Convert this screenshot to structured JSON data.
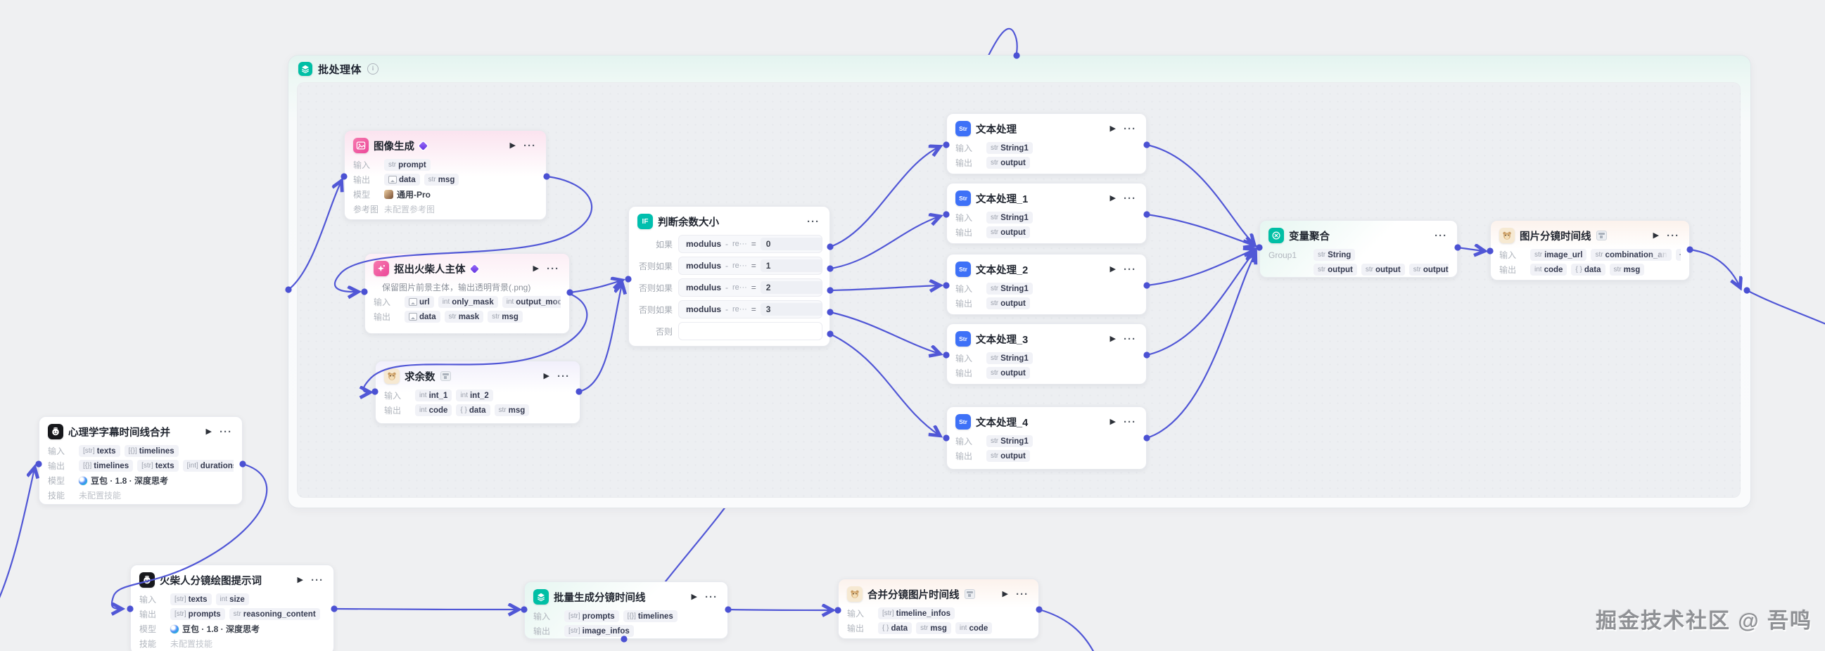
{
  "container": {
    "title": "批处理体"
  },
  "watermark": "掘金技术社区 @ 吾鸣",
  "nodes": [
    {
      "id": "imageGen",
      "title": "图像生成",
      "icon": "pic",
      "badge": "pro",
      "play": true,
      "menu": "···",
      "rows": [
        {
          "label": "输入",
          "type": "pills",
          "pills": [
            {
              "t": "str",
              "n": "prompt"
            }
          ]
        },
        {
          "label": "输出",
          "type": "pills",
          "pills": [
            {
              "t": "img",
              "n": "data"
            },
            {
              "t": "str",
              "n": "msg"
            }
          ]
        },
        {
          "label": "模型",
          "type": "model",
          "micon": "avatar",
          "text": "通用-Pro"
        },
        {
          "label": "参考图",
          "type": "muted",
          "text": "未配置参考图"
        }
      ]
    },
    {
      "id": "matting",
      "title": "抠出火柴人主体",
      "icon": "star",
      "badge": "pro",
      "play": true,
      "menu": "···",
      "rows": [
        {
          "type": "desc",
          "text": "保留图片前景主体，输出透明背景(.png)"
        },
        {
          "label": "输入",
          "type": "pills",
          "pills": [
            {
              "t": "img",
              "n": "url"
            },
            {
              "t": "int",
              "n": "only_mask"
            },
            {
              "t": "int",
              "n": "output_mode",
              "trunc": true
            }
          ],
          "more": "···"
        },
        {
          "label": "输出",
          "type": "pills",
          "pills": [
            {
              "t": "img",
              "n": "data"
            },
            {
              "t": "str",
              "n": "mask"
            },
            {
              "t": "str",
              "n": "msg"
            }
          ]
        }
      ]
    },
    {
      "id": "mod",
      "title": "求余数",
      "icon": "cat",
      "badge": "shop",
      "play": true,
      "menu": "···",
      "rows": [
        {
          "label": "输入",
          "type": "pills",
          "pills": [
            {
              "t": "int",
              "n": "int_1"
            },
            {
              "t": "int",
              "n": "int_2"
            }
          ]
        },
        {
          "label": "输出",
          "type": "pills",
          "pills": [
            {
              "t": "int",
              "n": "code"
            },
            {
              "t": "obj",
              "n": "data"
            },
            {
              "t": "str",
              "n": "msg"
            }
          ]
        }
      ]
    },
    {
      "id": "ifNode",
      "title": "判断余数大小",
      "icon": "if",
      "play": false,
      "menu": "···",
      "conds": [
        {
          "label": "如果",
          "field": "modulus",
          "op": "-",
          "cmp": "re···",
          "eq": "=",
          "value": "0"
        },
        {
          "label": "否则如果",
          "field": "modulus",
          "op": "-",
          "cmp": "re···",
          "eq": "=",
          "value": "1"
        },
        {
          "label": "否则如果",
          "field": "modulus",
          "op": "-",
          "cmp": "re···",
          "eq": "=",
          "value": "2"
        },
        {
          "label": "否则如果",
          "field": "modulus",
          "op": "-",
          "cmp": "re···",
          "eq": "=",
          "value": "3"
        },
        {
          "label": "否则",
          "empty": true
        }
      ]
    },
    {
      "id": "text0",
      "title": "文本处理",
      "icon": "str",
      "play": true,
      "menu": "···",
      "rows": [
        {
          "label": "输入",
          "type": "pills",
          "pills": [
            {
              "t": "str",
              "n": "String1"
            }
          ]
        },
        {
          "label": "输出",
          "type": "pills",
          "pills": [
            {
              "t": "str",
              "n": "output"
            }
          ]
        }
      ]
    },
    {
      "id": "text1",
      "title": "文本处理_1",
      "icon": "str",
      "play": true,
      "menu": "···",
      "rows": [
        {
          "label": "输入",
          "type": "pills",
          "pills": [
            {
              "t": "str",
              "n": "String1"
            }
          ]
        },
        {
          "label": "输出",
          "type": "pills",
          "pills": [
            {
              "t": "str",
              "n": "output"
            }
          ]
        }
      ]
    },
    {
      "id": "text2",
      "title": "文本处理_2",
      "icon": "str",
      "play": true,
      "menu": "···",
      "rows": [
        {
          "label": "输入",
          "type": "pills",
          "pills": [
            {
              "t": "str",
              "n": "String1"
            }
          ]
        },
        {
          "label": "输出",
          "type": "pills",
          "pills": [
            {
              "t": "str",
              "n": "output"
            }
          ]
        }
      ]
    },
    {
      "id": "text3",
      "title": "文本处理_3",
      "icon": "str",
      "play": true,
      "menu": "···",
      "rows": [
        {
          "label": "输入",
          "type": "pills",
          "pills": [
            {
              "t": "str",
              "n": "String1"
            }
          ]
        },
        {
          "label": "输出",
          "type": "pills",
          "pills": [
            {
              "t": "str",
              "n": "output"
            }
          ]
        }
      ]
    },
    {
      "id": "text4",
      "title": "文本处理_4",
      "icon": "str",
      "play": true,
      "menu": "···",
      "rows": [
        {
          "label": "输入",
          "type": "pills",
          "pills": [
            {
              "t": "str",
              "n": "String1"
            }
          ]
        },
        {
          "label": "输出",
          "type": "pills",
          "pills": [
            {
              "t": "str",
              "n": "output"
            }
          ]
        }
      ]
    },
    {
      "id": "agg",
      "title": "变量聚合",
      "icon": "agg",
      "play": false,
      "menu": "···",
      "rows": [
        {
          "label": "Group1",
          "type": "pills",
          "wide": true,
          "pills": [
            {
              "t": "str",
              "n": "String"
            }
          ]
        },
        {
          "label": "",
          "type": "pills",
          "wide": true,
          "pills": [
            {
              "t": "str",
              "n": "output"
            },
            {
              "t": "str",
              "n": "output"
            },
            {
              "t": "str",
              "n": "output"
            }
          ],
          "more": "···"
        }
      ]
    },
    {
      "id": "frames",
      "title": "图片分镜时间线",
      "icon": "cat",
      "badge": "shop",
      "play": true,
      "menu": "···",
      "rows": [
        {
          "label": "输入",
          "type": "pills",
          "pills": [
            {
              "t": "str",
              "n": "image_url"
            },
            {
              "t": "str",
              "n": "combination_animation",
              "trunc": true
            }
          ],
          "more": "···"
        },
        {
          "label": "输出",
          "type": "pills",
          "pills": [
            {
              "t": "int",
              "n": "code"
            },
            {
              "t": "obj",
              "n": "data"
            },
            {
              "t": "str",
              "n": "msg"
            }
          ]
        }
      ]
    },
    {
      "id": "psych",
      "title": "心理学字幕时间线合并",
      "icon": "bot",
      "play": true,
      "menu": "···",
      "rows": [
        {
          "label": "输入",
          "type": "pills",
          "pills": [
            {
              "t": "arrs",
              "n": "texts"
            },
            {
              "t": "arro",
              "n": "timelines"
            }
          ]
        },
        {
          "label": "输出",
          "type": "pills",
          "pills": [
            {
              "t": "arro",
              "n": "timelines"
            },
            {
              "t": "arrs",
              "n": "texts"
            },
            {
              "t": "arri",
              "n": "durations"
            },
            {
              "t": "int",
              "n": "s",
              "faded": true
            }
          ],
          "more": "···"
        },
        {
          "label": "模型",
          "type": "model",
          "micon": "doubao",
          "text": "豆包 · 1.8 · 深度思考"
        },
        {
          "label": "技能",
          "type": "muted",
          "text": "未配置技能"
        }
      ]
    },
    {
      "id": "stickman",
      "title": "火柴人分镜绘图提示词",
      "icon": "bot",
      "play": true,
      "menu": "···",
      "rows": [
        {
          "label": "输入",
          "type": "pills",
          "pills": [
            {
              "t": "arrs",
              "n": "texts"
            },
            {
              "t": "int",
              "n": "size"
            }
          ]
        },
        {
          "label": "输出",
          "type": "pills",
          "pills": [
            {
              "t": "arrs",
              "n": "prompts"
            },
            {
              "t": "str",
              "n": "reasoning_content"
            }
          ]
        },
        {
          "label": "模型",
          "type": "model",
          "micon": "doubao",
          "text": "豆包 · 1.8 · 深度思考"
        },
        {
          "label": "技能",
          "type": "muted",
          "text": "未配置技能"
        }
      ]
    },
    {
      "id": "batchGen",
      "title": "批量生成分镜时间线",
      "icon": "layers",
      "play": true,
      "menu": "···",
      "rows": [
        {
          "label": "输入",
          "type": "pills",
          "pills": [
            {
              "t": "arrs",
              "n": "prompts"
            },
            {
              "t": "arro",
              "n": "timelines"
            }
          ]
        },
        {
          "label": "输出",
          "type": "pills",
          "pills": [
            {
              "t": "arrs",
              "n": "image_infos"
            }
          ]
        }
      ]
    },
    {
      "id": "merge",
      "title": "合并分镜图片时间线",
      "icon": "cat",
      "badge": "shop",
      "play": true,
      "menu": "···",
      "rows": [
        {
          "label": "输入",
          "type": "pills",
          "pills": [
            {
              "t": "arrs",
              "n": "timeline_infos"
            }
          ]
        },
        {
          "label": "输出",
          "type": "pills",
          "pills": [
            {
              "t": "obj",
              "n": "data"
            },
            {
              "t": "str",
              "n": "msg"
            },
            {
              "t": "int",
              "n": "code"
            }
          ]
        }
      ]
    }
  ],
  "type_prefixes": {
    "str": "str",
    "int": "int",
    "obj": "{ }",
    "arrs": "[str]",
    "arro": "[{}]",
    "arri": "[int]"
  },
  "colors": {
    "wire": "#5157d6",
    "port": "#4b51d3",
    "accent_teal": "#00bfa5",
    "accent_pink": "#ec4899",
    "accent_blue": "#3e71f7"
  }
}
